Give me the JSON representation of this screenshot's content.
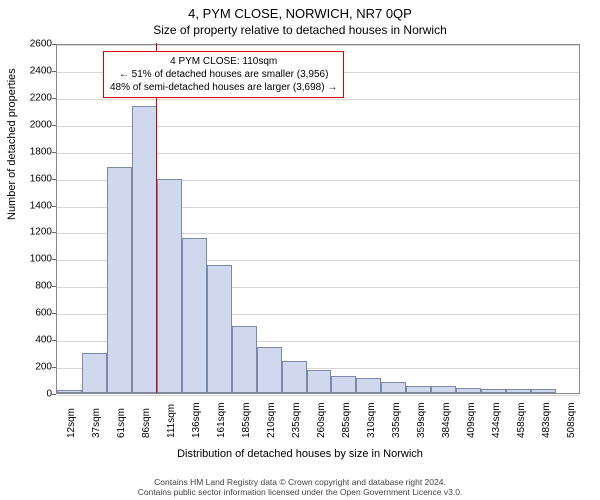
{
  "header": {
    "title": "4, PYM CLOSE, NORWICH, NR7 0QP",
    "subtitle": "Size of property relative to detached houses in Norwich"
  },
  "chart": {
    "type": "histogram",
    "y_axis_label": "Number of detached properties",
    "x_axis_label": "Distribution of detached houses by size in Norwich",
    "ylim": [
      0,
      2600
    ],
    "ytick_step": 200,
    "y_ticks": [
      0,
      200,
      400,
      600,
      800,
      1000,
      1200,
      1400,
      1600,
      1800,
      2000,
      2200,
      2400,
      2600
    ],
    "bar_fill": "#cfd8ec",
    "bar_border": "#7b8aa8",
    "grid_color": "#bbbbbb",
    "background_color": "#ffffff",
    "reference_line": {
      "x_value": 110,
      "color": "#d40000"
    },
    "bins": [
      {
        "label": "12sqm",
        "v": 20
      },
      {
        "label": "37sqm",
        "v": 300
      },
      {
        "label": "61sqm",
        "v": 1680
      },
      {
        "label": "86sqm",
        "v": 2130
      },
      {
        "label": "111sqm",
        "v": 1590
      },
      {
        "label": "136sqm",
        "v": 1150
      },
      {
        "label": "161sqm",
        "v": 950
      },
      {
        "label": "185sqm",
        "v": 500
      },
      {
        "label": "210sqm",
        "v": 340
      },
      {
        "label": "235sqm",
        "v": 240
      },
      {
        "label": "260sqm",
        "v": 170
      },
      {
        "label": "285sqm",
        "v": 130
      },
      {
        "label": "310sqm",
        "v": 110
      },
      {
        "label": "335sqm",
        "v": 80
      },
      {
        "label": "359sqm",
        "v": 50
      },
      {
        "label": "384sqm",
        "v": 50
      },
      {
        "label": "409sqm",
        "v": 40
      },
      {
        "label": "434sqm",
        "v": 30
      },
      {
        "label": "458sqm",
        "v": 30
      },
      {
        "label": "483sqm",
        "v": 30
      },
      {
        "label": "508sqm",
        "v": 0
      }
    ]
  },
  "annotation": {
    "line1": "4 PYM CLOSE: 110sqm",
    "line2": "← 51% of detached houses are smaller (3,956)",
    "line3": "48% of semi-detached houses are larger (3,698) →"
  },
  "footer": {
    "line1": "Contains HM Land Registry data © Crown copyright and database right 2024.",
    "line2": "Contains public sector information licensed under the Open Government Licence v3.0."
  }
}
